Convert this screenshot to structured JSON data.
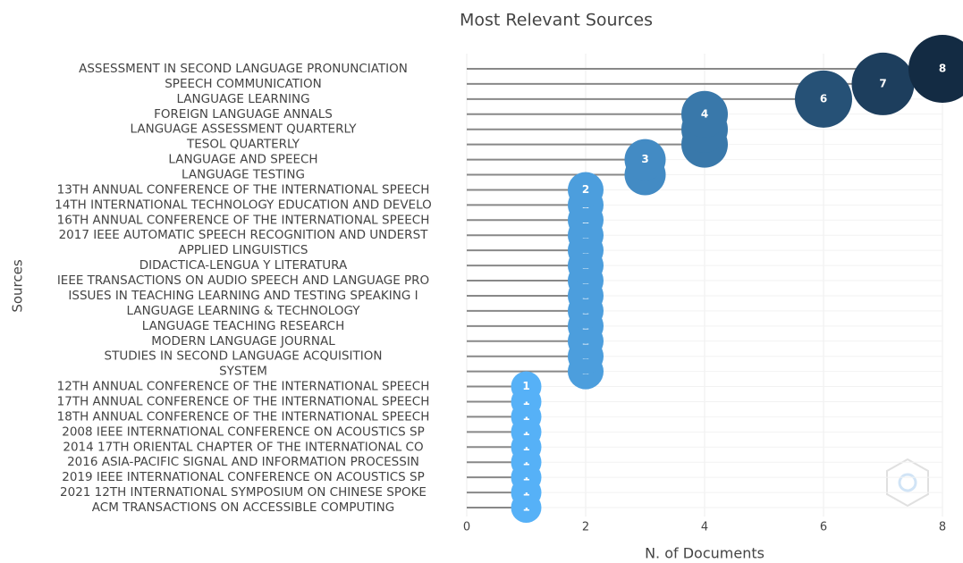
{
  "chart_data": {
    "type": "lollipop",
    "title": "Most Relevant Sources",
    "x_label": "N. of Documents",
    "y_label": "Sources",
    "categories": [
      "ASSESSMENT IN SECOND LANGUAGE PRONUNCIATION",
      "SPEECH COMMUNICATION",
      "LANGUAGE LEARNING",
      "FOREIGN LANGUAGE ANNALS",
      "LANGUAGE ASSESSMENT QUARTERLY",
      "TESOL QUARTERLY",
      "LANGUAGE AND SPEECH",
      "LANGUAGE TESTING",
      "13TH ANNUAL CONFERENCE OF THE INTERNATIONAL SPEECH",
      "14TH INTERNATIONAL TECHNOLOGY EDUCATION AND DEVELO",
      "16TH ANNUAL CONFERENCE OF THE INTERNATIONAL SPEECH",
      "2017 IEEE AUTOMATIC SPEECH RECOGNITION AND UNDERST",
      "APPLIED LINGUISTICS",
      "DIDACTICA-LENGUA Y LITERATURA",
      "IEEE TRANSACTIONS ON AUDIO SPEECH AND LANGUAGE PRO",
      "ISSUES IN TEACHING LEARNING AND TESTING SPEAKING I",
      "LANGUAGE LEARNING & TECHNOLOGY",
      "LANGUAGE TEACHING RESEARCH",
      "MODERN LANGUAGE JOURNAL",
      "STUDIES IN SECOND LANGUAGE ACQUISITION",
      "SYSTEM",
      "12TH ANNUAL CONFERENCE OF THE INTERNATIONAL SPEECH",
      "17TH ANNUAL CONFERENCE OF THE INTERNATIONAL SPEECH",
      "18TH ANNUAL CONFERENCE OF THE INTERNATIONAL SPEECH",
      "2008 IEEE INTERNATIONAL CONFERENCE ON ACOUSTICS SP",
      "2014 17TH ORIENTAL CHAPTER OF THE INTERNATIONAL CO",
      "2016 ASIA-PACIFIC SIGNAL AND INFORMATION PROCESSIN",
      "2019 IEEE INTERNATIONAL CONFERENCE ON ACOUSTICS SP",
      "2021 12TH INTERNATIONAL SYMPOSIUM ON CHINESE SPOKE",
      "ACM TRANSACTIONS ON ACCESSIBLE COMPUTING"
    ],
    "values": [
      8,
      7,
      6,
      4,
      4,
      4,
      3,
      3,
      2,
      2,
      2,
      2,
      2,
      2,
      2,
      2,
      2,
      2,
      2,
      2,
      2,
      1,
      1,
      1,
      1,
      1,
      1,
      1,
      1,
      1
    ],
    "color_low": "#56b1f7",
    "color_high": "#132b43",
    "xlim": [
      0,
      8
    ],
    "xticks": [
      0,
      2,
      4,
      6,
      8
    ],
    "grid": true
  }
}
